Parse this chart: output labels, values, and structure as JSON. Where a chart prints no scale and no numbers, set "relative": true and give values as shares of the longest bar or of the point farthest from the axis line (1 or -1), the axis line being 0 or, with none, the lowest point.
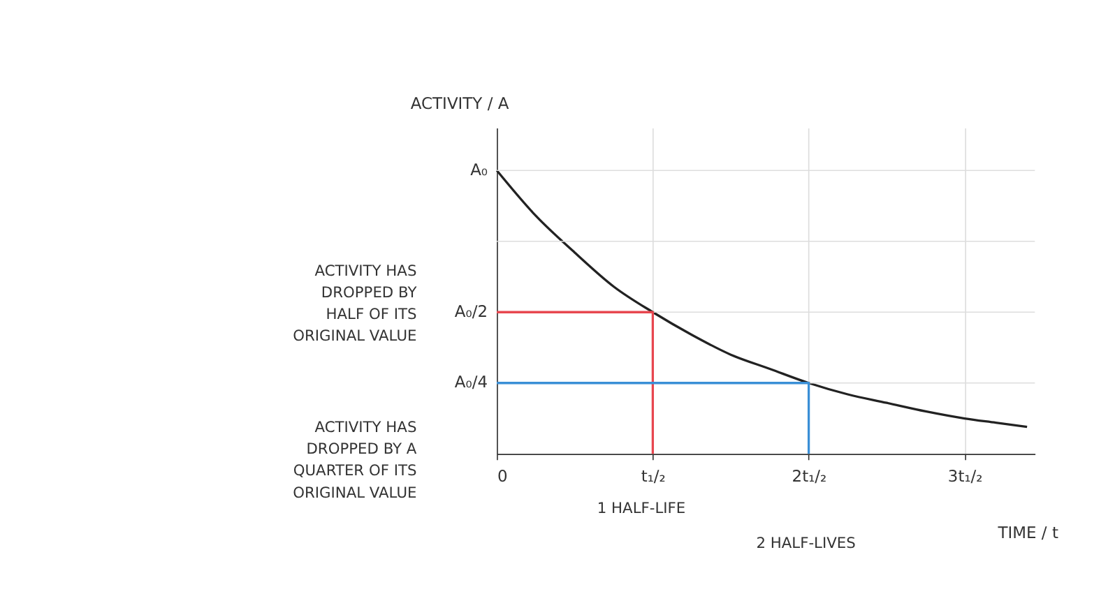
{
  "chart_data": {
    "type": "line",
    "xlabel": "TIME / t",
    "ylabel": "ACTIVITY / A",
    "xlim": [
      0,
      3.45
    ],
    "relative": true,
    "xticks": [
      {
        "value": 0,
        "label": "0"
      },
      {
        "value": 1,
        "label": "t₁/₂"
      },
      {
        "value": 2,
        "label": "2t₁/₂"
      },
      {
        "value": 3,
        "label": "3t₁/₂"
      }
    ],
    "grid": "x",
    "ref_lines": [
      {
        "axis": "y",
        "value": 1,
        "label": "A₀",
        "color": "#dddddd"
      },
      {
        "axis": "y",
        "value": 0.75,
        "label": null,
        "color": "#dddddd"
      },
      {
        "axis": "y",
        "value": 0.5,
        "label": "A₀/2",
        "color": "#dddddd"
      },
      {
        "axis": "y",
        "value": 0.25,
        "label": "A₀/4",
        "color": "#dddddd"
      }
    ],
    "series": [
      {
        "color": "#222222",
        "x": [
          0,
          0.25,
          0.5,
          0.75,
          1,
          1.25,
          1.5,
          1.75,
          2,
          2.25,
          2.5,
          2.75,
          3,
          3.2,
          3.4
        ],
        "values": [
          1,
          0.84,
          0.71,
          0.59,
          0.5,
          0.42,
          0.35,
          0.3,
          0.25,
          0.21,
          0.18,
          0.15,
          0.125,
          0.11,
          0.095
        ]
      },
      {
        "color": "#e8474f",
        "x": [
          0,
          1,
          1
        ],
        "values": [
          0.5,
          0.5,
          0
        ]
      },
      {
        "color": "#3a8fd6",
        "x": [
          0,
          2,
          2
        ],
        "values": [
          0.25,
          0.25,
          0
        ]
      }
    ],
    "annotations": [
      "ACTIVITY HAS\nDROPPED BY\nHALF OF ITS\nORIGINAL VALUE",
      "ACTIVITY HAS\nDROPPED BY A\nQUARTER OF ITS\nORIGINAL VALUE",
      {
        "text": "1 HALF-LIFE",
        "x": 1,
        "y": 0
      },
      "2 HALF-LIVES"
    ]
  }
}
